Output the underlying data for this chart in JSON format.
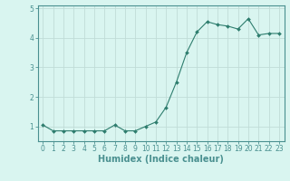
{
  "x": [
    0,
    1,
    2,
    3,
    4,
    5,
    6,
    7,
    8,
    9,
    10,
    11,
    12,
    13,
    14,
    15,
    16,
    17,
    18,
    19,
    20,
    21,
    22,
    23
  ],
  "y": [
    1.05,
    0.85,
    0.85,
    0.85,
    0.85,
    0.85,
    0.85,
    1.05,
    0.85,
    0.85,
    1.0,
    1.15,
    1.65,
    2.5,
    3.5,
    4.2,
    4.55,
    4.45,
    4.4,
    4.3,
    4.65,
    4.1,
    4.15,
    4.15
  ],
  "line_color": "#2e7d6e",
  "marker": "D",
  "marker_size": 2.0,
  "xlabel": "Humidex (Indice chaleur)",
  "bg_color": "#d9f5f0",
  "grid_color": "#c0ddd8",
  "ylim": [
    0.5,
    5.1
  ],
  "xlim": [
    -0.5,
    23.5
  ],
  "yticks": [
    1,
    2,
    3,
    4,
    5
  ],
  "xticks": [
    0,
    1,
    2,
    3,
    4,
    5,
    6,
    7,
    8,
    9,
    10,
    11,
    12,
    13,
    14,
    15,
    16,
    17,
    18,
    19,
    20,
    21,
    22,
    23
  ],
  "xtick_labels": [
    "0",
    "1",
    "2",
    "3",
    "4",
    "5",
    "6",
    "7",
    "8",
    "9",
    "10",
    "11",
    "12",
    "13",
    "14",
    "15",
    "16",
    "17",
    "18",
    "19",
    "20",
    "21",
    "22",
    "23"
  ],
  "tick_fontsize": 5.5,
  "xlabel_fontsize": 7.0,
  "spine_color": "#4a9090",
  "tick_color": "#4a9090"
}
